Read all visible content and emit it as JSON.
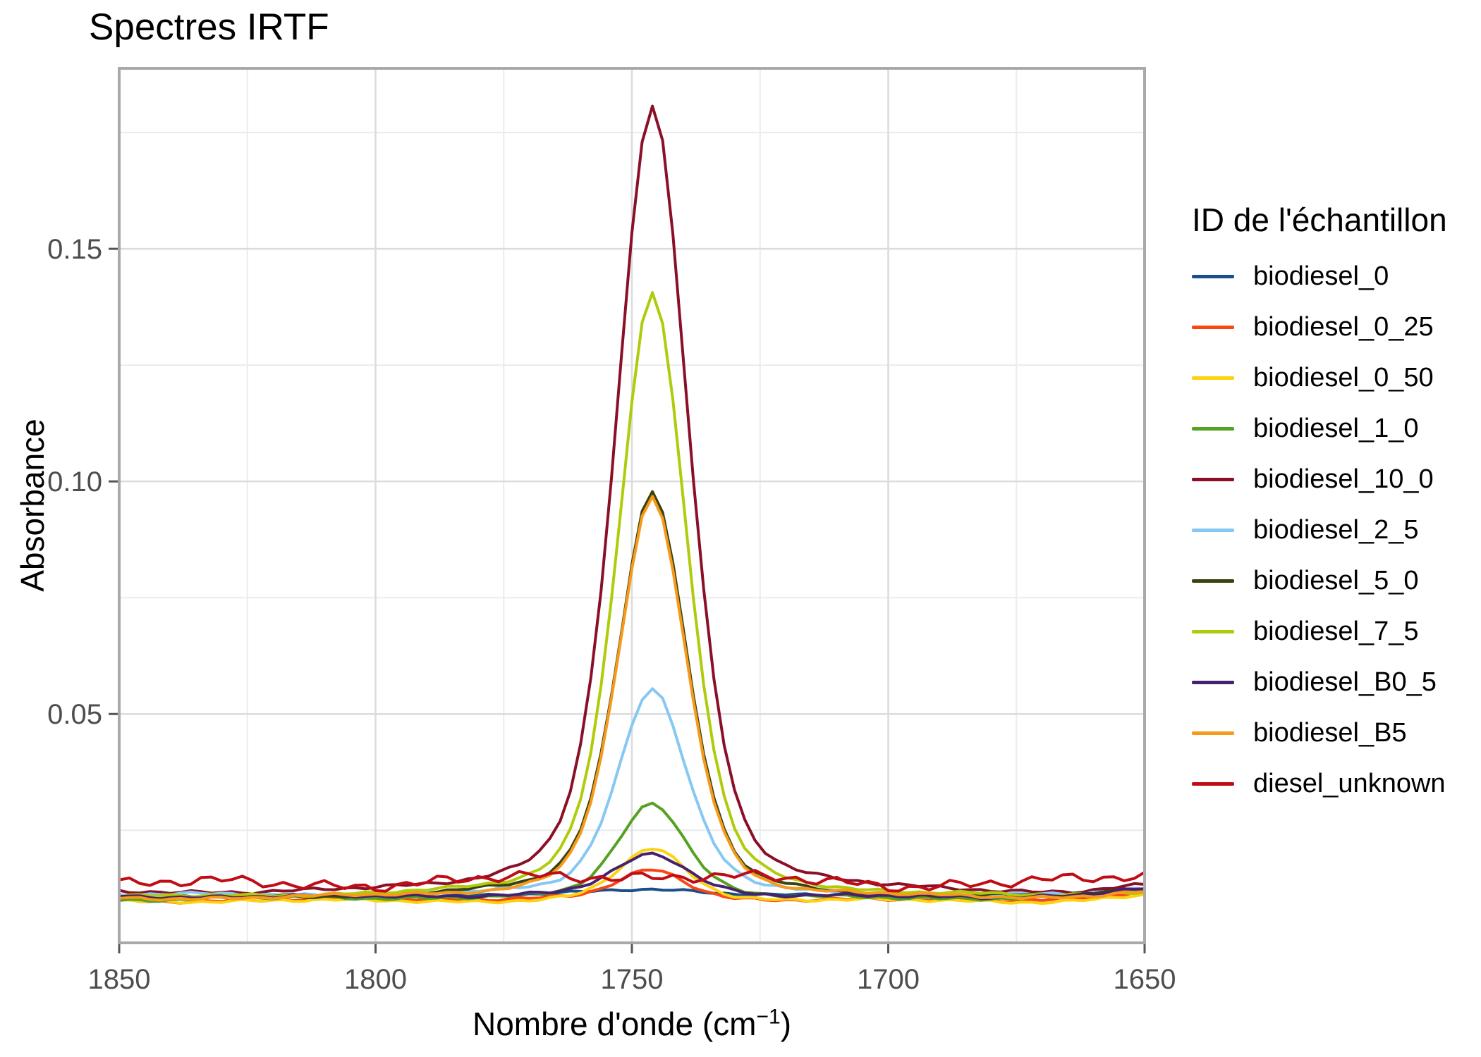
{
  "legend": {
    "title": "ID de l'échantillon"
  },
  "chart_data": {
    "type": "line",
    "title": "Spectres IRTF",
    "xlabel": "Nombre d'onde (cm−1)",
    "xlabel_parts": {
      "prefix": "Nombre d'onde (cm",
      "sup": "−1",
      "suffix": ")"
    },
    "ylabel": "Absorbance",
    "x_axis": {
      "range": [
        1850,
        1650
      ],
      "reversed": true,
      "major_ticks": [
        1850,
        1800,
        1750,
        1700,
        1650
      ],
      "minor_ticks": [
        1825,
        1775,
        1725,
        1675
      ],
      "grid": true
    },
    "y_axis": {
      "range": [
        0.0008,
        0.1888
      ],
      "major_ticks": [
        0.05,
        0.1,
        0.15
      ],
      "tick_labels": [
        "0.05",
        "0.10",
        "0.15"
      ],
      "minor_ticks": [
        0.025,
        0.075,
        0.125,
        0.175
      ],
      "grid": true
    },
    "legend_position": "right",
    "peak_center_cm1": 1746,
    "sample_step_cm1": 2,
    "colors": {
      "grid_major": "#dcdcdc",
      "grid_minor": "#ebebeb",
      "panel_border": "#a9a9a9",
      "tick_mark": "#555555",
      "tick_label": "#4d4d4d"
    },
    "series": [
      {
        "name": "biodiesel_0",
        "color": "#1a4e8a",
        "baseline": 0.011,
        "peak_absorbance": 0.0122,
        "width_factor": 1.6,
        "noise": 0.00035,
        "seed": 3
      },
      {
        "name": "biodiesel_0_25",
        "color": "#f94713",
        "baseline": 0.01,
        "peak_absorbance": 0.0165,
        "width_factor": 1.0,
        "noise": 0.00045,
        "seed": 7
      },
      {
        "name": "biodiesel_0_50",
        "color": "#fdd20e",
        "baseline": 0.0097,
        "peak_absorbance": 0.021,
        "width_factor": 1.0,
        "noise": 0.00045,
        "seed": 11
      },
      {
        "name": "biodiesel_1_0",
        "color": "#55a222",
        "baseline": 0.0102,
        "peak_absorbance": 0.031,
        "width_factor": 1.0,
        "noise": 0.00045,
        "seed": 5
      },
      {
        "name": "biodiesel_10_0",
        "color": "#8a1028",
        "baseline": 0.0112,
        "peak_absorbance": 0.1805,
        "width_factor": 1.05,
        "noise": 0.0005,
        "seed": 9
      },
      {
        "name": "biodiesel_2_5",
        "color": "#86c8f4",
        "baseline": 0.011,
        "peak_absorbance": 0.0555,
        "width_factor": 1.0,
        "noise": 0.00045,
        "seed": 13
      },
      {
        "name": "biodiesel_5_0",
        "color": "#3a430f",
        "baseline": 0.0105,
        "peak_absorbance": 0.098,
        "width_factor": 1.0,
        "noise": 0.00045,
        "seed": 17
      },
      {
        "name": "biodiesel_7_5",
        "color": "#b0cb0b",
        "baseline": 0.0104,
        "peak_absorbance": 0.1405,
        "width_factor": 1.0,
        "noise": 0.00045,
        "seed": 21
      },
      {
        "name": "biodiesel_B0_5",
        "color": "#46216e",
        "baseline": 0.0108,
        "peak_absorbance": 0.0197,
        "width_factor": 1.1,
        "noise": 0.00045,
        "seed": 25
      },
      {
        "name": "biodiesel_B5",
        "color": "#f79a1b",
        "baseline": 0.0102,
        "peak_absorbance": 0.0965,
        "width_factor": 1.0,
        "noise": 0.00045,
        "seed": 29
      },
      {
        "name": "diesel_unknown",
        "color": "#c00c15",
        "baseline": 0.0138,
        "peak_absorbance": 0.015,
        "width_factor": 3.0,
        "noise": 0.0015,
        "seed": 41
      }
    ]
  }
}
